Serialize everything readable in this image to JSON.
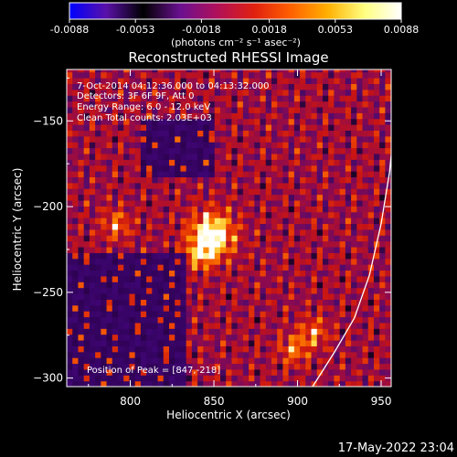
{
  "colorbar": {
    "ticks": [
      "-0.0088",
      "-0.0053",
      "-0.0018",
      "0.0018",
      "0.0053",
      "0.0088"
    ],
    "tick_values": [
      -0.0088,
      -0.0053,
      -0.0018,
      0.0018,
      0.0053,
      0.0088
    ],
    "range": [
      -0.0088,
      0.0088
    ],
    "unit_text": "(photons cm⁻² s⁻¹ asec⁻²)",
    "colors": [
      "#0000ff",
      "#5a10a8",
      "#000000",
      "#6a1090",
      "#b0105a",
      "#e02010",
      "#ff6000",
      "#ffb000",
      "#ffff80",
      "#ffffff"
    ]
  },
  "chart_data": {
    "type": "heatmap",
    "title": "Reconstructed RHESSI Image",
    "xlabel": "Heliocentric X (arcsec)",
    "ylabel": "Heliocentric Y (arcsec)",
    "xlim": [
      762,
      956
    ],
    "ylim": [
      -305,
      -120
    ],
    "xticks": [
      800,
      850,
      900,
      950
    ],
    "yticks": [
      -150,
      -200,
      -250,
      -300
    ],
    "grid": false,
    "peak": {
      "x": 847,
      "y": -218
    },
    "secondary_peaks": [
      {
        "x": 896,
        "y": -285
      },
      {
        "x": 908,
        "y": -275
      },
      {
        "x": 790,
        "y": -212
      },
      {
        "x": 840,
        "y": -230
      }
    ],
    "limb_curve": {
      "points": [
        [
          909,
          -305
        ],
        [
          922,
          -285
        ],
        [
          934,
          -265
        ],
        [
          943,
          -240
        ],
        [
          950,
          -210
        ],
        [
          955,
          -180
        ],
        [
          958,
          -150
        ],
        [
          960,
          -124
        ]
      ]
    }
  },
  "annotations": {
    "time_range": "7-Oct-2014 04:12:36.000 to 04:13:32.000",
    "detectors": "Detectors: 3F 6F 9F, Att 0",
    "energy": "Energy Range: 6.0 - 12.0 keV",
    "counts": "Clean    Total counts: 2.03E+03",
    "peak_label": "Position of Peak = [847,-218]"
  },
  "footer_timestamp": "17-May-2022 23:04"
}
